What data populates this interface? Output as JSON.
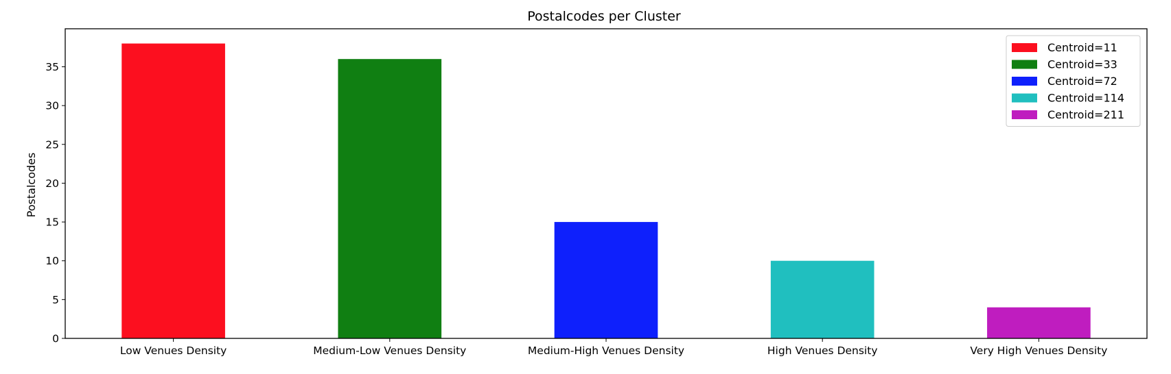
{
  "chart_data": {
    "type": "bar",
    "title": "Postalcodes per Cluster",
    "xlabel": "",
    "ylabel": "Postalcodes",
    "categories": [
      "Low Venues Density",
      "Medium-Low Venues Density",
      "Medium-High Venues Density",
      "High Venues Density",
      "Very High Venues Density"
    ],
    "values": [
      38,
      36,
      15,
      10,
      4
    ],
    "colors": [
      "#fc0f1f",
      "#107f12",
      "#0e20fc",
      "#20bfbf",
      "#bf1dbf"
    ],
    "ylim": [
      0,
      39.9
    ],
    "yticks": [
      0,
      5,
      10,
      15,
      20,
      25,
      30,
      35
    ],
    "grid": false,
    "legend": {
      "position": "top-right",
      "entries": [
        "Centroid=11",
        "Centroid=33",
        "Centroid=72",
        "Centroid=114",
        "Centroid=211"
      ]
    }
  }
}
